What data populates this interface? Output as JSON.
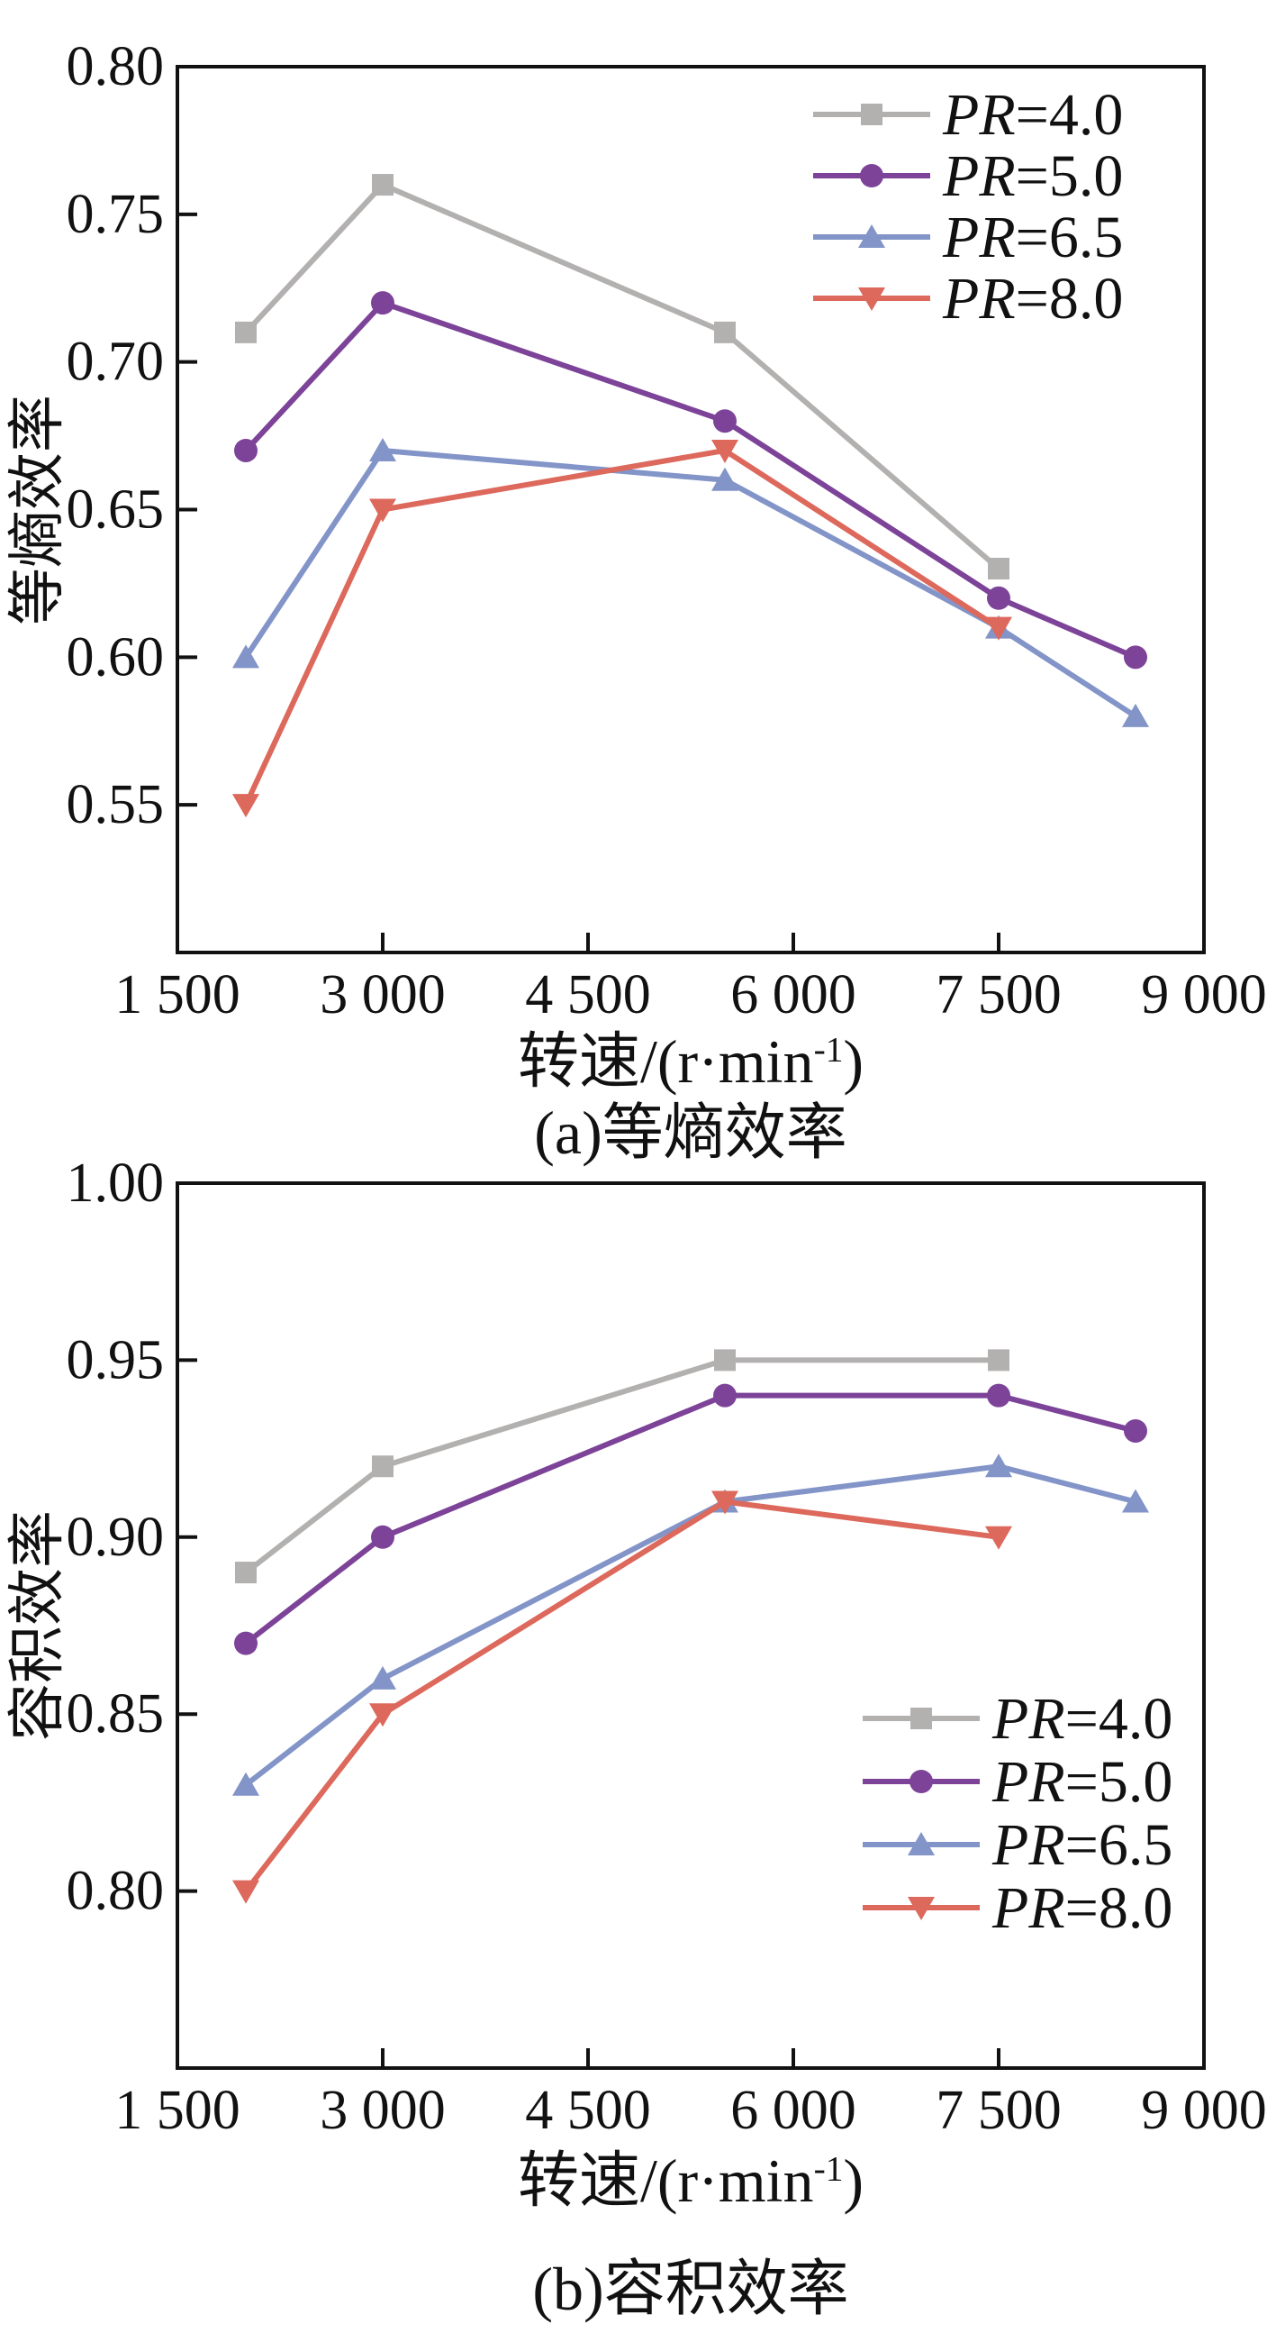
{
  "style": {
    "background": "#ffffff",
    "axis_color": "#111111",
    "text_color": "#111111"
  },
  "chart_data": [
    {
      "type": "line",
      "caption": "(a)等熵效率",
      "ylabel": "等熵效率",
      "xlabel_parts": {
        "main": "转速/(r·min",
        "sup": "-1",
        "close": ")"
      },
      "xlim": [
        1500,
        9000
      ],
      "ylim": [
        0.5,
        0.8
      ],
      "xticks": [
        1500,
        3000,
        4500,
        6000,
        7500,
        9000
      ],
      "xtick_labels": [
        "1 500",
        "3 000",
        "4 500",
        "6 000",
        "7 500",
        "9 000"
      ],
      "yticks": [
        0.55,
        0.6,
        0.65,
        0.7,
        0.75,
        0.8
      ],
      "ytick_labels": [
        "0.55",
        "0.60",
        "0.65",
        "0.70",
        "0.75",
        "0.80"
      ],
      "grid": false,
      "legend_position": "top-right",
      "x": [
        2000,
        3000,
        5500,
        7500,
        8500
      ],
      "series": [
        {
          "name": "PR=4.0",
          "color": "#b3b0b0",
          "marker": "square",
          "values": [
            0.71,
            0.76,
            0.71,
            0.63,
            null
          ]
        },
        {
          "name": "PR=5.0",
          "color": "#7c4398",
          "marker": "circle",
          "values": [
            0.67,
            0.72,
            0.68,
            0.62,
            0.6
          ]
        },
        {
          "name": "PR=6.5",
          "color": "#8294c8",
          "marker": "triangle-up",
          "values": [
            0.6,
            0.67,
            0.66,
            0.61,
            0.58
          ]
        },
        {
          "name": "PR=8.0",
          "color": "#dd685c",
          "marker": "triangle-down",
          "values": [
            0.55,
            0.65,
            0.67,
            0.61,
            null
          ]
        }
      ]
    },
    {
      "type": "line",
      "caption": "(b)容积效率",
      "ylabel": "容积效率",
      "xlabel_parts": {
        "main": "转速/(r·min",
        "sup": "-1",
        "close": ")"
      },
      "xlim": [
        1500,
        9000
      ],
      "ylim": [
        0.75,
        1.0
      ],
      "xticks": [
        1500,
        3000,
        4500,
        6000,
        7500,
        9000
      ],
      "xtick_labels": [
        "1 500",
        "3 000",
        "4 500",
        "6 000",
        "7 500",
        "9 000"
      ],
      "yticks": [
        0.8,
        0.85,
        0.9,
        0.95,
        1.0
      ],
      "ytick_labels": [
        "0.80",
        "0.85",
        "0.90",
        "0.95",
        "1.00"
      ],
      "grid": false,
      "legend_position": "bottom-right",
      "x": [
        2000,
        3000,
        5500,
        7500,
        8500
      ],
      "series": [
        {
          "name": "PR=4.0",
          "color": "#b3b0b0",
          "marker": "square",
          "values": [
            0.89,
            0.92,
            0.95,
            0.95,
            null
          ]
        },
        {
          "name": "PR=5.0",
          "color": "#7c4398",
          "marker": "circle",
          "values": [
            0.87,
            0.9,
            0.94,
            0.94,
            0.93
          ]
        },
        {
          "name": "PR=6.5",
          "color": "#8294c8",
          "marker": "triangle-up",
          "values": [
            0.83,
            0.86,
            0.91,
            0.92,
            0.91
          ]
        },
        {
          "name": "PR=8.0",
          "color": "#dd685c",
          "marker": "triangle-down",
          "values": [
            0.8,
            0.85,
            0.91,
            0.9,
            null
          ]
        }
      ]
    }
  ]
}
